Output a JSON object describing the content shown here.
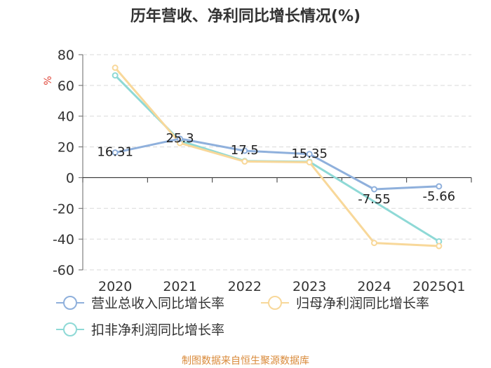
{
  "chart_data": {
    "type": "line",
    "title": "历年营收、净利同比增长情况(%)",
    "ylabel": "%",
    "categories": [
      "2020",
      "2021",
      "2022",
      "2023",
      "2024",
      "2025Q1"
    ],
    "ylim": [
      -60,
      80
    ],
    "yticks": [
      80,
      60,
      40,
      20,
      0,
      -20,
      -40,
      -60
    ],
    "grid": true,
    "legend_position": "bottom-left",
    "series": [
      {
        "name": "营业总收入同比增长率",
        "color": "#8fb0dc",
        "values": [
          16.31,
          25.3,
          17.5,
          15.35,
          -7.55,
          -5.66
        ],
        "labels": [
          "16.31",
          "25.3",
          "17.5",
          "15.35",
          "-7.55",
          "-5.66"
        ]
      },
      {
        "name": "归母净利润同比增长率",
        "color": "#f8d89a",
        "values": [
          71.5,
          22.5,
          10.5,
          10.0,
          -42.5,
          -44.5
        ]
      },
      {
        "name": "扣非净利润同比增长率",
        "color": "#8ed9d6",
        "values": [
          66.5,
          24.0,
          10.8,
          10.3,
          null,
          -41.5
        ]
      }
    ],
    "source": "制图数据来自恒生聚源数据库"
  }
}
